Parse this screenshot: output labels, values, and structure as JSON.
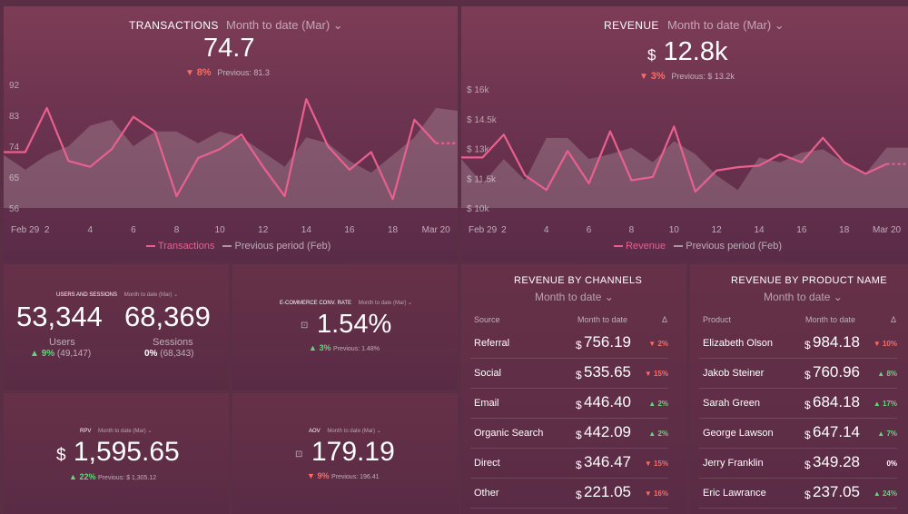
{
  "colors": {
    "line": "#e9608f",
    "prev_fill": "rgba(255,255,255,0.18)",
    "up": "#5fd97a",
    "down": "#ff6b5e"
  },
  "transactions": {
    "title": "TRANSACTIONS",
    "period": "Month to date (Mar)",
    "value": "74.7",
    "change_icon": "▼",
    "change": "8%",
    "previous": "Previous: 81.3",
    "legend_current": "Transactions",
    "legend_previous": "Previous period (Feb)"
  },
  "revenue": {
    "title": "REVENUE",
    "period": "Month to date (Mar)",
    "currency": "$",
    "value": "12.8k",
    "change_icon": "▼",
    "change": "3%",
    "previous": "Previous: $ 13.2k",
    "legend_current": "Revenue",
    "legend_previous": "Previous period (Feb)"
  },
  "chart_data": [
    {
      "type": "area",
      "title": "TRANSACTIONS",
      "x": [
        "Feb 29",
        "Mar 1",
        "Mar 2",
        "Mar 3",
        "Mar 4",
        "Mar 5",
        "Mar 6",
        "Mar 7",
        "Mar 8",
        "Mar 9",
        "Mar 10",
        "Mar 11",
        "Mar 12",
        "Mar 13",
        "Mar 14",
        "Mar 15",
        "Mar 16",
        "Mar 17",
        "Mar 18",
        "Mar 19",
        "Mar 20",
        "Mar 21"
      ],
      "x_tick_labels": [
        "Feb 29",
        "2",
        "4",
        "6",
        "8",
        "10",
        "12",
        "14",
        "16",
        "18",
        "Mar 20"
      ],
      "y_tick_labels": [
        "92",
        "83",
        "74",
        "65",
        "56"
      ],
      "ylim": [
        54,
        96
      ],
      "series": [
        {
          "name": "Transactions",
          "values": [
            73,
            73,
            88,
            70,
            68,
            74,
            85,
            80,
            58,
            71,
            74,
            79,
            68,
            58,
            91,
            75,
            67,
            73,
            57,
            84,
            76,
            76
          ]
        },
        {
          "name": "Previous period (Feb)",
          "values": [
            72,
            67,
            72,
            75,
            82,
            84,
            75,
            80,
            80,
            76,
            80,
            78,
            73,
            68,
            78,
            76,
            70,
            66,
            72,
            78,
            88,
            87
          ]
        }
      ]
    },
    {
      "type": "area",
      "title": "REVENUE",
      "x": [
        "Feb 29",
        "Mar 1",
        "Mar 2",
        "Mar 3",
        "Mar 4",
        "Mar 5",
        "Mar 6",
        "Mar 7",
        "Mar 8",
        "Mar 9",
        "Mar 10",
        "Mar 11",
        "Mar 12",
        "Mar 13",
        "Mar 14",
        "Mar 15",
        "Mar 16",
        "Mar 17",
        "Mar 18",
        "Mar 19",
        "Mar 20",
        "Mar 21"
      ],
      "x_tick_labels": [
        "Feb 29",
        "2",
        "4",
        "6",
        "8",
        "10",
        "12",
        "14",
        "16",
        "18",
        "Mar 20"
      ],
      "y_tick_labels": [
        "$ 16k",
        "$ 14.5k",
        "$ 13k",
        "$ 11.5k",
        "$ 10k"
      ],
      "ylim": [
        9.5,
        16.8
      ],
      "series": [
        {
          "name": "Revenue",
          "values": [
            12.6,
            12.6,
            14,
            11.5,
            10.6,
            13,
            11,
            14.2,
            11.2,
            11.4,
            14.5,
            10.5,
            11.8,
            12.0,
            12.1,
            12.8,
            12.3,
            13.8,
            12.3,
            11.6,
            12.2,
            12.2
          ]
        },
        {
          "name": "Previous period (Feb)",
          "values": [
            12.5,
            11,
            12.5,
            11.2,
            13.8,
            13.8,
            12.5,
            12.8,
            13.2,
            12.3,
            13.6,
            12.8,
            11.5,
            10.6,
            12.6,
            12.3,
            12.9,
            13.1,
            12.3,
            11.6,
            13.2,
            13.2
          ]
        }
      ]
    }
  ],
  "users": {
    "title": "USERS AND SESSIONS",
    "period": "Month to date (Mar)",
    "users_value": "53,344",
    "users_label": "Users",
    "users_change": "9%",
    "users_prev": "(49,147)",
    "sessions_value": "68,369",
    "sessions_label": "Sessions",
    "sessions_change": "0%",
    "sessions_prev": "(68,343)"
  },
  "ecom": {
    "title": "E-COMMERCE CONV. RATE",
    "period": "Month to date (Mar)",
    "value": "1.54%",
    "change": "3%",
    "previous": "Previous: 1.48%"
  },
  "rpv": {
    "title": "RPV",
    "period": "Month to date (Mar)",
    "currency": "$",
    "value": "1,595.65",
    "change": "22%",
    "previous": "Previous: $ 1,305.12"
  },
  "aov": {
    "title": "AOV",
    "period": "Month to date (Mar)",
    "value": "179.19",
    "change": "9%",
    "previous": "Previous: 196.41"
  },
  "channels": {
    "title": "REVENUE BY CHANNELS",
    "period": "Month to date",
    "col1": "Source",
    "col2": "Month to date",
    "col3": "Δ",
    "rows": [
      {
        "name": "Referral",
        "value": "756.19",
        "dir": "down",
        "change": "2%"
      },
      {
        "name": "Social",
        "value": "535.65",
        "dir": "down",
        "change": "15%"
      },
      {
        "name": "Email",
        "value": "446.40",
        "dir": "up",
        "change": "2%"
      },
      {
        "name": "Organic Search",
        "value": "442.09",
        "dir": "up",
        "change": "2%"
      },
      {
        "name": "Direct",
        "value": "346.47",
        "dir": "down",
        "change": "15%"
      },
      {
        "name": "Other",
        "value": "221.05",
        "dir": "down",
        "change": "16%"
      }
    ]
  },
  "products": {
    "title": "REVENUE BY PRODUCT NAME",
    "period": "Month to date",
    "col1": "Product",
    "col2": "Month to date",
    "col3": "Δ",
    "rows": [
      {
        "name": "Elizabeth Olson",
        "value": "984.18",
        "dir": "down",
        "change": "10%"
      },
      {
        "name": "Jakob Steiner",
        "value": "760.96",
        "dir": "up",
        "change": "8%"
      },
      {
        "name": "Sarah Green",
        "value": "684.18",
        "dir": "up",
        "change": "17%"
      },
      {
        "name": "George Lawson",
        "value": "647.14",
        "dir": "up",
        "change": "7%"
      },
      {
        "name": "Jerry Franklin",
        "value": "349.28",
        "dir": "none",
        "change": "0%"
      },
      {
        "name": "Eric Lawrance",
        "value": "237.05",
        "dir": "up",
        "change": "24%"
      }
    ]
  }
}
